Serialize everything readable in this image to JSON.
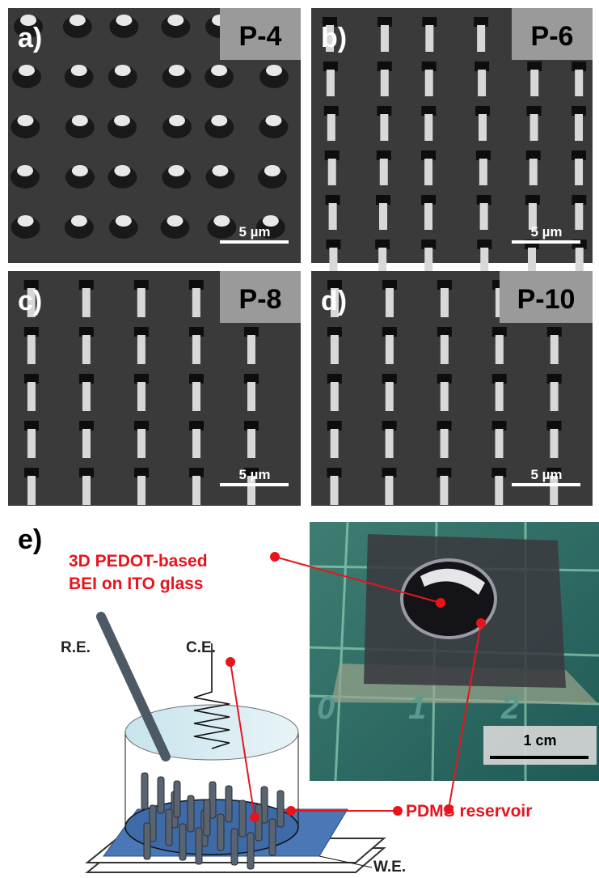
{
  "panels": [
    {
      "label": "a)",
      "tag": "P-4",
      "scale": "5 µm"
    },
    {
      "label": "b)",
      "tag": "P-6",
      "scale": "5 µm"
    },
    {
      "label": "c)",
      "tag": "P-8",
      "scale": "5 µm"
    },
    {
      "label": "d)",
      "tag": "P-10",
      "scale": "5 µm"
    }
  ],
  "panel_e": {
    "label": "e)",
    "callout": [
      "3D PEDOT-based",
      "BEI on ITO glass"
    ],
    "reservoir": "PDMS reservoir",
    "electrodes": {
      "counter": "C.E.",
      "reference": "R.E.",
      "working": "W.E."
    },
    "photo_scale": "1 cm",
    "photo_ruler": [
      "0",
      "1",
      "2"
    ]
  }
}
